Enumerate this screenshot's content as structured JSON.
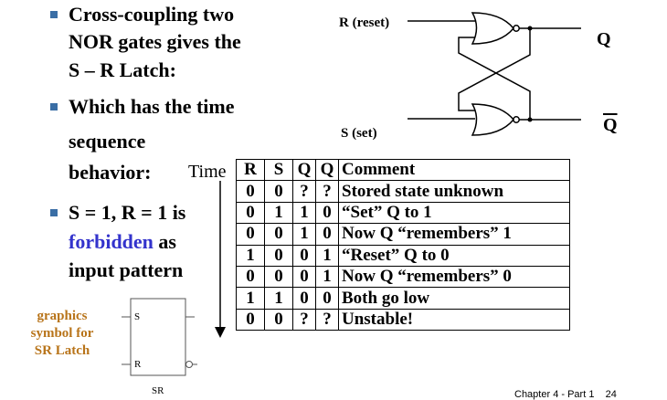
{
  "bullets": [
    {
      "lines": [
        "Cross-coupling two",
        "NOR gates gives the",
        "S – R Latch:"
      ]
    },
    {
      "lines": [
        "Which has the time",
        "sequence",
        "behavior:"
      ]
    },
    {
      "line1_pre": "S = 1, R = 1 is",
      "line2_blue": "forbidden",
      "line2_rest": " as",
      "line3": "input pattern"
    }
  ],
  "time_label": "Time",
  "circuit": {
    "r_label": "R (reset)",
    "s_label": "S (set)",
    "q_label": "Q",
    "qbar_label": "Q"
  },
  "table": {
    "headers": [
      "R",
      "S",
      "Q",
      "Q",
      "Comment"
    ],
    "rows": [
      [
        "0",
        "0",
        "?",
        "?",
        "Stored state unknown"
      ],
      [
        "0",
        "1",
        "1",
        "0",
        "“Set” Q to 1"
      ],
      [
        "0",
        "0",
        "1",
        "0",
        "Now Q “remembers” 1"
      ],
      [
        "1",
        "0",
        "0",
        "1",
        "“Reset” Q to 0"
      ],
      [
        "0",
        "0",
        "0",
        "1",
        "Now Q “remembers” 0"
      ],
      [
        "1",
        "1",
        "0",
        "0",
        "Both go low"
      ],
      [
        "0",
        "0",
        "?",
        "?",
        "Unstable!"
      ]
    ]
  },
  "graphics_label": [
    "graphics",
    "symbol for",
    "SR Latch"
  ],
  "symbol": {
    "s_pin": "S",
    "r_pin": "R",
    "caption": "SR"
  },
  "footer": "Chapter 4 - Part 1    24"
}
